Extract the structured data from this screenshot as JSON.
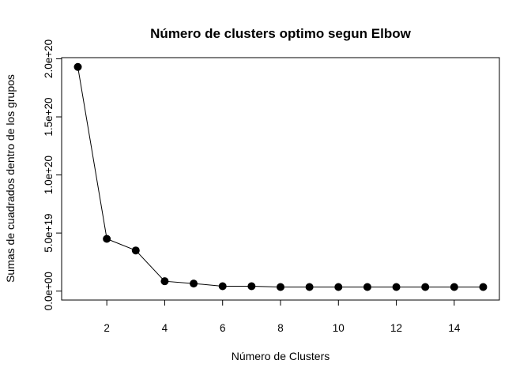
{
  "chart_data": {
    "type": "line",
    "title": "Número de clusters optimo segun Elbow",
    "xlabel": "Número de Clusters",
    "ylabel": "Sumas de cuadrados dentro de los grupos",
    "x": [
      1,
      2,
      3,
      4,
      5,
      6,
      7,
      8,
      9,
      10,
      11,
      12,
      13,
      14,
      15
    ],
    "y": [
      1.93e+20,
      4.5e+19,
      3.5e+19,
      8.5e+18,
      6.5e+18,
      4.2e+18,
      4.2e+18,
      3.5e+18,
      3.5e+18,
      3.5e+18,
      3.5e+18,
      3.5e+18,
      3.5e+18,
      3.5e+18,
      3.5e+18
    ],
    "xlim": [
      0.44,
      15.56
    ],
    "ylim": [
      -7.7e+18,
      2.01e+20
    ],
    "x_ticks": [
      2,
      4,
      6,
      8,
      10,
      12,
      14
    ],
    "x_tick_labels": [
      "2",
      "4",
      "6",
      "8",
      "10",
      "12",
      "14"
    ],
    "y_ticks": [
      0,
      5e+19,
      1e+20,
      1.5e+20,
      2e+20
    ],
    "y_tick_labels": [
      "0.0e+00",
      "5.0e+19",
      "1.0e+20",
      "1.5e+20",
      "2.0e+20"
    ],
    "grid": false,
    "legend": "none",
    "line_color": "#000000",
    "marker_color": "#000000"
  }
}
